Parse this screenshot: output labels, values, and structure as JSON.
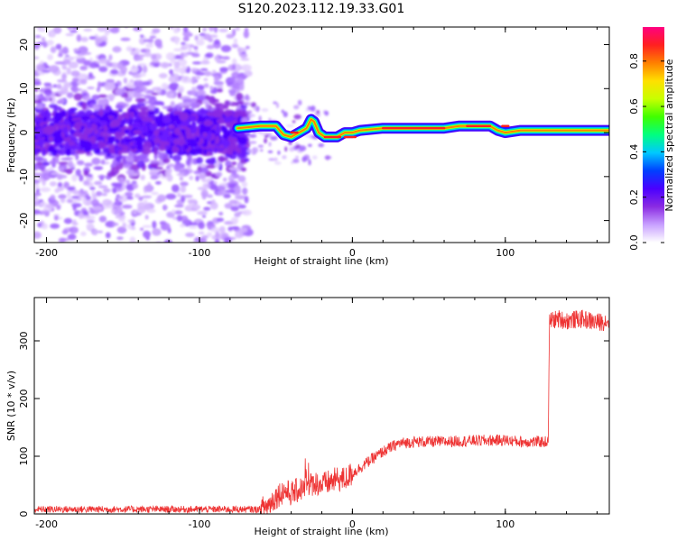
{
  "title": "S120.2023.112.19.33.G01",
  "chart_data": [
    {
      "type": "heatmap",
      "xlabel": "Height of straight line (km)",
      "ylabel": "Frequency (Hz)",
      "xlim": [
        -208,
        168
      ],
      "ylim": [
        -25,
        24
      ],
      "xticks": [
        -200,
        -100,
        0,
        100
      ],
      "xtick_labels": [
        "-200",
        "-100",
        "0",
        "100"
      ],
      "yticks": [
        -20,
        -10,
        0,
        10,
        20
      ],
      "ytick_labels": [
        "-20",
        "-10",
        "0",
        "10",
        "20"
      ],
      "colorbar": {
        "label": "Normalized spectral amplitude",
        "range": [
          0.0,
          0.95
        ],
        "ticks": [
          0.0,
          0.2,
          0.4,
          0.6,
          0.8
        ],
        "tick_labels": [
          "0.0",
          "0.2",
          "0.4",
          "0.6",
          "0.8"
        ],
        "colormap": [
          "#ffffff",
          "#c8a0ff",
          "#8a2be2",
          "#4b00ff",
          "#0040ff",
          "#00c8ff",
          "#00ff80",
          "#40ff00",
          "#c8ff00",
          "#ffe000",
          "#ff8000",
          "#ff2020",
          "#ff0080"
        ]
      },
      "ridge": {
        "x": [
          -75,
          -60,
          -50,
          -45,
          -40,
          -35,
          -30,
          -27,
          -25,
          -22,
          -18,
          -10,
          -5,
          0,
          5,
          20,
          60,
          70,
          80,
          90,
          95,
          100,
          110,
          130,
          168
        ],
        "freq": [
          1,
          1.5,
          1.5,
          -0.5,
          -1,
          0,
          1,
          3,
          2.5,
          0,
          -1,
          -1,
          0,
          0,
          0.5,
          1,
          1,
          1.5,
          1.5,
          1.5,
          0.5,
          0,
          0.5,
          0.5,
          0.5
        ]
      }
    },
    {
      "type": "line",
      "xlabel": "Height of straight line (km)",
      "ylabel": "SNR (10 * v/v)",
      "xlim": [
        -208,
        168
      ],
      "ylim": [
        0,
        375
      ],
      "xticks": [
        -200,
        -100,
        0,
        100
      ],
      "xtick_labels": [
        "-200",
        "-100",
        "0",
        "100"
      ],
      "yticks": [
        0,
        100,
        200,
        300
      ],
      "ytick_labels": [
        "0",
        "100",
        "200",
        "300"
      ],
      "color": "#ee3333",
      "series": [
        {
          "x": [
            -208,
            -180,
            -150,
            -120,
            -100,
            -80,
            -60,
            -55,
            -50,
            -45,
            -40,
            -35,
            -30,
            -25,
            -20,
            -15,
            -10,
            -5,
            0,
            10,
            20,
            30,
            40,
            60,
            80,
            100,
            110,
            120,
            128,
            129,
            135,
            140,
            150,
            160,
            168
          ],
          "values": [
            8,
            8,
            8,
            8,
            8,
            8,
            8,
            15,
            30,
            40,
            35,
            42,
            45,
            55,
            50,
            55,
            60,
            60,
            70,
            90,
            108,
            122,
            125,
            125,
            127,
            128,
            125,
            125,
            125,
            335,
            338,
            335,
            338,
            332,
            335
          ]
        }
      ]
    }
  ]
}
